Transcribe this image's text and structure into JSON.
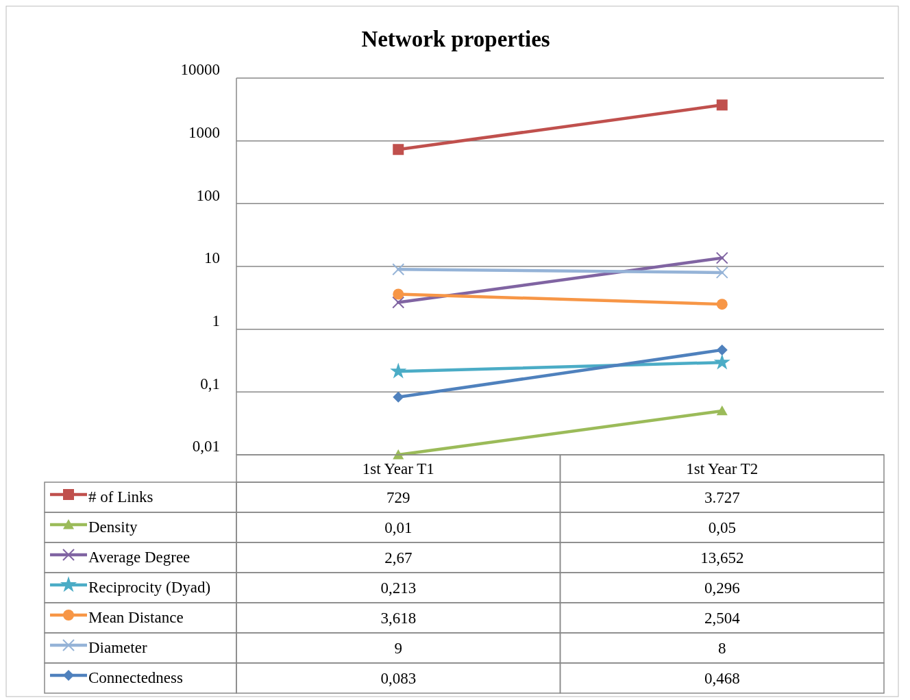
{
  "chart_data": {
    "type": "line",
    "title": "Network properties",
    "categories": [
      "1st Year T1",
      "1st Year T2"
    ],
    "log": true,
    "ylim": [
      0.01,
      10000
    ],
    "yticks": [
      {
        "value": 0.01,
        "label": "0,01"
      },
      {
        "value": 0.1,
        "label": "0,1"
      },
      1,
      10,
      100,
      1000,
      10000
    ],
    "grid": "y",
    "legend": "bottom",
    "series": [
      {
        "name": "# of Links",
        "color": "#c0504d",
        "marker": "square",
        "values": [
          729,
          3727
        ],
        "value_labels": [
          "729",
          "3.727"
        ]
      },
      {
        "name": "Density",
        "color": "#9bbb59",
        "marker": "triangle",
        "values": [
          0.01,
          0.05
        ],
        "value_labels": [
          "0,01",
          "0,05"
        ]
      },
      {
        "name": "Average Degree",
        "color": "#8064a2",
        "marker": "cross",
        "values": [
          2.67,
          13.652
        ],
        "value_labels": [
          "2,67",
          "13,652"
        ]
      },
      {
        "name": "Reciprocity (Dyad)",
        "color": "#4bacc6",
        "marker": "star",
        "values": [
          0.213,
          0.296
        ],
        "value_labels": [
          "0,213",
          "0,296"
        ]
      },
      {
        "name": "Mean Distance",
        "color": "#f79646",
        "marker": "circle",
        "values": [
          3.618,
          2.504
        ],
        "value_labels": [
          "3,618",
          "2,504"
        ]
      },
      {
        "name": "Diameter",
        "color": "#95b3d7",
        "marker": "cross",
        "values": [
          9,
          8
        ],
        "value_labels": [
          "9",
          "8"
        ]
      },
      {
        "name": "Connectedness",
        "color": "#4f81bd",
        "marker": "diamond",
        "values": [
          0.083,
          0.468
        ],
        "value_labels": [
          "0,083",
          "0,468"
        ]
      }
    ]
  }
}
